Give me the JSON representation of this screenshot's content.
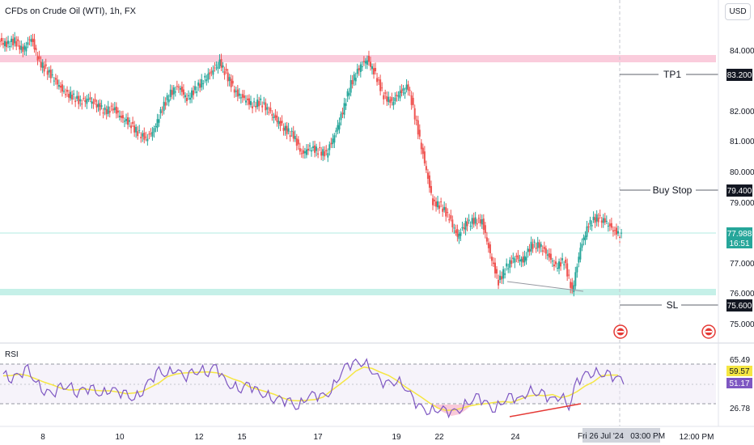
{
  "header": {
    "title": "CFDs on Crude Oil (WTI), 1h, FX",
    "currency_button": "USD"
  },
  "rsi_panel": {
    "title": "RSI",
    "axis_labels": [
      "65.49",
      "26.78"
    ],
    "value_badges": [
      {
        "text": "59.57",
        "color": "#f5e642"
      },
      {
        "text": "51.17",
        "color": "#7e57c2"
      }
    ]
  },
  "price_axis": {
    "ticks": [
      "84.000",
      "82.000",
      "81.000",
      "80.000",
      "79.000",
      "77.000",
      "76.000",
      "75.000"
    ]
  },
  "annotations": [
    {
      "label": "TP1",
      "price_label": "83.200",
      "price": 83.2
    },
    {
      "label": "Buy Stop",
      "price_label": "79.400",
      "price": 79.4
    },
    {
      "label": "SL",
      "price_label": "75.600",
      "price": 75.6
    }
  ],
  "last_price": {
    "price": "77.988",
    "countdown": "16:51",
    "color": "#26a69a"
  },
  "time_axis": {
    "labels": [
      "8",
      "10",
      "12",
      "15",
      "17",
      "19",
      "22",
      "24"
    ],
    "crosshair_label": "Fri 26 Jul '24   03:00 PM",
    "extra_label": "12:00 PM"
  },
  "colors": {
    "up": "#26a69a",
    "down": "#ef5350",
    "resistance_zone": "#f8bbd0",
    "support_zone": "#b2ebe0",
    "rsi_line": "#7e57c2",
    "rsi_ma": "#f5e642",
    "divergence": "#e53935"
  },
  "icons": [
    "event-flag-icon",
    "event-flag-icon"
  ],
  "chart_data": {
    "type": "candlestick",
    "symbol": "CFDs on Crude Oil (WTI)",
    "interval": "1h",
    "series": [
      {
        "name": "price",
        "values": [
          84.2,
          84.3,
          84.0,
          84.4,
          83.6,
          83.3,
          83.0,
          82.6,
          82.5,
          82.3,
          82.4,
          82.2,
          82.0,
          82.1,
          81.8,
          81.6,
          81.3,
          81.1,
          81.4,
          82.1,
          82.6,
          82.8,
          82.4,
          82.7,
          83.0,
          83.3,
          83.6,
          83.1,
          82.6,
          82.4,
          82.2,
          82.3,
          82.0,
          81.7,
          81.4,
          81.2,
          80.6,
          80.8,
          80.7,
          80.6,
          81.2,
          82.0,
          82.9,
          83.4,
          83.7,
          83.2,
          82.5,
          82.3,
          82.6,
          82.8,
          81.6,
          80.3,
          79.0,
          78.9,
          78.5,
          77.9,
          78.3,
          78.4,
          78.4,
          77.3,
          76.4,
          76.9,
          77.2,
          77.1,
          77.6,
          77.6,
          77.3,
          76.9,
          77.1,
          76.1,
          77.5,
          78.3,
          78.5,
          78.4,
          78.1,
          77.9
        ]
      }
    ],
    "levels": [
      {
        "label": "TP1",
        "price": 83.2
      },
      {
        "label": "Buy Stop",
        "price": 79.4
      },
      {
        "label": "SL",
        "price": 75.6
      },
      {
        "label": "last",
        "price": 77.988
      }
    ],
    "zones": [
      {
        "name": "resistance",
        "from": 83.6,
        "to": 83.8
      },
      {
        "name": "support",
        "from": 75.95,
        "to": 76.05
      }
    ],
    "ylim": [
      74.6,
      85.0
    ],
    "rsi": {
      "levels": [
        26.78,
        65.49
      ],
      "current": [
        59.57,
        51.17
      ],
      "values": [
        56,
        52,
        55,
        60,
        48,
        40,
        36,
        42,
        45,
        38,
        41,
        40,
        36,
        42,
        38,
        35,
        32,
        40,
        50,
        58,
        56,
        62,
        52,
        56,
        60,
        58,
        63,
        48,
        44,
        42,
        45,
        38,
        36,
        32,
        30,
        28,
        24,
        34,
        35,
        33,
        40,
        55,
        64,
        66,
        68,
        60,
        48,
        46,
        50,
        44,
        30,
        22,
        20,
        22,
        19,
        18,
        24,
        30,
        33,
        26,
        22,
        30,
        33,
        30,
        40,
        38,
        35,
        30,
        36,
        24,
        48,
        55,
        58,
        56,
        54,
        51
      ]
    },
    "time_labels": [
      "8",
      "10",
      "12",
      "15",
      "17",
      "19",
      "22",
      "24"
    ],
    "grid": true
  }
}
